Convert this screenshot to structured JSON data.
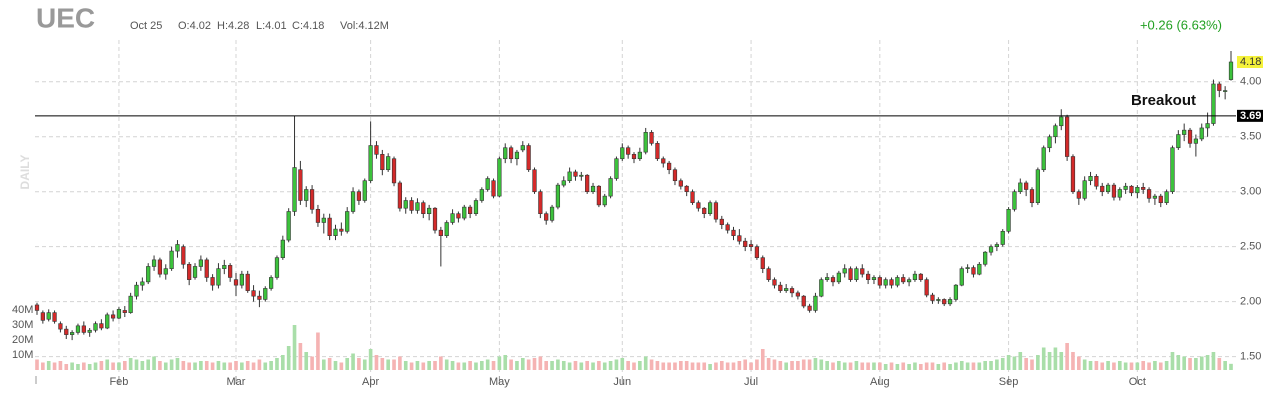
{
  "chart_data": {
    "type": "candlestick",
    "title": "UEC",
    "quote": {
      "date": "Oct 25",
      "open": "O:4.02",
      "high": "H:4.28",
      "low": "L:4.01",
      "close": "C:4.18",
      "volume": "Vol:4.12M",
      "change": "+0.26 (6.63%)"
    },
    "watermark": "DAILY",
    "ylim": [
      1.36,
      4.38
    ],
    "yticks": [
      {
        "value": 1.5,
        "label": "1.50"
      },
      {
        "value": 2,
        "label": "2.00"
      },
      {
        "value": 2.5,
        "label": "2.50"
      },
      {
        "value": 3,
        "label": "3.00"
      },
      {
        "value": 3.5,
        "label": "3.50"
      },
      {
        "value": 4,
        "label": "4.00"
      }
    ],
    "xlim": [
      0,
      204
    ],
    "xticks": [
      {
        "value": 14,
        "label": "Feb"
      },
      {
        "value": 34,
        "label": "Mar"
      },
      {
        "value": 57,
        "label": "Apr"
      },
      {
        "value": 79,
        "label": "May"
      },
      {
        "value": 100,
        "label": "Jun"
      },
      {
        "value": 122,
        "label": "Jul"
      },
      {
        "value": 144,
        "label": "Aug"
      },
      {
        "value": 166,
        "label": "Sep"
      },
      {
        "value": 188,
        "label": "Oct"
      }
    ],
    "grid": true,
    "up_color": "#3cc23c",
    "down_color": "#d42a2a",
    "up_volume_color": "#a9dea9",
    "down_volume_color": "#f5b3b3",
    "vlim": [
      0,
      40
    ],
    "vticks": [
      {
        "value": 10,
        "label": "10M"
      },
      {
        "value": 20,
        "label": "20M"
      },
      {
        "value": 30,
        "label": "30M"
      },
      {
        "value": 40,
        "label": "40M"
      }
    ],
    "last_price": {
      "value": 4.18,
      "label": "4.18"
    },
    "breakout": {
      "value": 3.69,
      "label": "3.69",
      "text": "Breakout"
    },
    "ohlc": [
      [
        1.97,
        1.99,
        1.88,
        1.92
      ],
      [
        1.9,
        1.92,
        1.8,
        1.83
      ],
      [
        1.84,
        1.93,
        1.82,
        1.9
      ],
      [
        1.9,
        1.92,
        1.8,
        1.82
      ],
      [
        1.8,
        1.82,
        1.72,
        1.75
      ],
      [
        1.75,
        1.78,
        1.66,
        1.7
      ],
      [
        1.7,
        1.74,
        1.65,
        1.72
      ],
      [
        1.72,
        1.8,
        1.7,
        1.78
      ],
      [
        1.78,
        1.82,
        1.7,
        1.72
      ],
      [
        1.72,
        1.76,
        1.68,
        1.74
      ],
      [
        1.74,
        1.82,
        1.72,
        1.8
      ],
      [
        1.8,
        1.84,
        1.74,
        1.76
      ],
      [
        1.76,
        1.9,
        1.75,
        1.88
      ],
      [
        1.88,
        1.92,
        1.82,
        1.85
      ],
      [
        1.85,
        1.95,
        1.84,
        1.93
      ],
      [
        1.92,
        1.96,
        1.86,
        1.9
      ],
      [
        1.9,
        2.08,
        1.89,
        2.05
      ],
      [
        2.05,
        2.18,
        2.02,
        2.15
      ],
      [
        2.15,
        2.22,
        2.1,
        2.18
      ],
      [
        2.18,
        2.35,
        2.16,
        2.32
      ],
      [
        2.32,
        2.42,
        2.28,
        2.38
      ],
      [
        2.38,
        2.4,
        2.22,
        2.25
      ],
      [
        2.25,
        2.34,
        2.2,
        2.3
      ],
      [
        2.3,
        2.5,
        2.28,
        2.46
      ],
      [
        2.46,
        2.56,
        2.4,
        2.52
      ],
      [
        2.5,
        2.52,
        2.3,
        2.34
      ],
      [
        2.34,
        2.36,
        2.15,
        2.2
      ],
      [
        2.22,
        2.35,
        2.2,
        2.32
      ],
      [
        2.32,
        2.42,
        2.28,
        2.38
      ],
      [
        2.38,
        2.4,
        2.18,
        2.22
      ],
      [
        2.22,
        2.25,
        2.1,
        2.15
      ],
      [
        2.15,
        2.35,
        2.12,
        2.3
      ],
      [
        2.3,
        2.38,
        2.25,
        2.33
      ],
      [
        2.33,
        2.35,
        2.18,
        2.22
      ],
      [
        2.2,
        2.26,
        2.05,
        2.15
      ],
      [
        2.15,
        2.28,
        2.12,
        2.25
      ],
      [
        2.25,
        2.28,
        2.08,
        2.1
      ],
      [
        2.1,
        2.15,
        2.0,
        2.05
      ],
      [
        2.05,
        2.1,
        1.95,
        2.02
      ],
      [
        2.02,
        2.14,
        2.0,
        2.12
      ],
      [
        2.12,
        2.24,
        2.1,
        2.22
      ],
      [
        2.22,
        2.42,
        2.2,
        2.4
      ],
      [
        2.4,
        2.6,
        2.38,
        2.56
      ],
      [
        2.56,
        2.85,
        2.54,
        2.82
      ],
      [
        2.82,
        3.69,
        2.78,
        3.22
      ],
      [
        3.2,
        3.28,
        2.88,
        2.92
      ],
      [
        2.92,
        3.05,
        2.86,
        3.02
      ],
      [
        3.02,
        3.06,
        2.8,
        2.84
      ],
      [
        2.84,
        2.88,
        2.68,
        2.72
      ],
      [
        2.72,
        2.8,
        2.62,
        2.76
      ],
      [
        2.76,
        2.8,
        2.56,
        2.6
      ],
      [
        2.6,
        2.7,
        2.56,
        2.66
      ],
      [
        2.66,
        2.72,
        2.6,
        2.64
      ],
      [
        2.64,
        2.86,
        2.62,
        2.82
      ],
      [
        2.82,
        3.04,
        2.8,
        3.0
      ],
      [
        3.0,
        3.02,
        2.88,
        2.92
      ],
      [
        2.92,
        3.12,
        2.9,
        3.1
      ],
      [
        3.1,
        3.64,
        3.08,
        3.42
      ],
      [
        3.42,
        3.46,
        3.3,
        3.34
      ],
      [
        3.34,
        3.38,
        3.15,
        3.2
      ],
      [
        3.2,
        3.35,
        3.18,
        3.32
      ],
      [
        3.3,
        3.32,
        3.05,
        3.08
      ],
      [
        3.08,
        3.1,
        2.82,
        2.85
      ],
      [
        2.85,
        2.95,
        2.8,
        2.92
      ],
      [
        2.92,
        2.95,
        2.8,
        2.83
      ],
      [
        2.83,
        2.94,
        2.8,
        2.9
      ],
      [
        2.9,
        2.92,
        2.76,
        2.8
      ],
      [
        2.8,
        2.88,
        2.74,
        2.85
      ],
      [
        2.85,
        2.86,
        2.62,
        2.65
      ],
      [
        2.65,
        2.68,
        2.32,
        2.6
      ],
      [
        2.6,
        2.74,
        2.58,
        2.72
      ],
      [
        2.72,
        2.84,
        2.7,
        2.8
      ],
      [
        2.8,
        2.82,
        2.72,
        2.76
      ],
      [
        2.76,
        2.88,
        2.74,
        2.86
      ],
      [
        2.86,
        2.88,
        2.76,
        2.8
      ],
      [
        2.8,
        2.94,
        2.78,
        2.92
      ],
      [
        2.92,
        3.04,
        2.9,
        3.02
      ],
      [
        3.02,
        3.14,
        3.0,
        3.12
      ],
      [
        3.1,
        3.12,
        2.94,
        2.96
      ],
      [
        2.96,
        3.32,
        2.95,
        3.3
      ],
      [
        3.3,
        3.44,
        3.26,
        3.4
      ],
      [
        3.4,
        3.42,
        3.26,
        3.3
      ],
      [
        3.3,
        3.38,
        3.24,
        3.36
      ],
      [
        3.38,
        3.46,
        3.36,
        3.42
      ],
      [
        3.42,
        3.44,
        3.18,
        3.2
      ],
      [
        3.2,
        3.22,
        2.98,
        3.0
      ],
      [
        3.0,
        3.02,
        2.76,
        2.8
      ],
      [
        2.8,
        2.82,
        2.7,
        2.74
      ],
      [
        2.74,
        2.88,
        2.72,
        2.86
      ],
      [
        2.86,
        3.08,
        2.84,
        3.06
      ],
      [
        3.06,
        3.14,
        3.04,
        3.1
      ],
      [
        3.1,
        3.22,
        3.08,
        3.18
      ],
      [
        3.18,
        3.2,
        3.1,
        3.14
      ],
      [
        3.14,
        3.18,
        3.1,
        3.15
      ],
      [
        3.15,
        3.16,
        2.98,
        3.0
      ],
      [
        3.0,
        3.08,
        2.98,
        3.05
      ],
      [
        3.05,
        3.06,
        2.86,
        2.88
      ],
      [
        2.88,
        2.98,
        2.86,
        2.96
      ],
      [
        2.96,
        3.14,
        2.94,
        3.12
      ],
      [
        3.12,
        3.32,
        3.1,
        3.3
      ],
      [
        3.3,
        3.44,
        3.28,
        3.4
      ],
      [
        3.4,
        3.42,
        3.3,
        3.34
      ],
      [
        3.34,
        3.36,
        3.26,
        3.3
      ],
      [
        3.3,
        3.4,
        3.28,
        3.36
      ],
      [
        3.36,
        3.58,
        3.34,
        3.54
      ],
      [
        3.54,
        3.56,
        3.42,
        3.44
      ],
      [
        3.44,
        3.46,
        3.28,
        3.3
      ],
      [
        3.3,
        3.32,
        3.22,
        3.26
      ],
      [
        3.26,
        3.28,
        3.16,
        3.2
      ],
      [
        3.2,
        3.22,
        3.06,
        3.1
      ],
      [
        3.1,
        3.12,
        3.02,
        3.05
      ],
      [
        3.05,
        3.06,
        2.96,
        3.0
      ],
      [
        3.0,
        3.02,
        2.88,
        2.9
      ],
      [
        2.9,
        2.92,
        2.82,
        2.85
      ],
      [
        2.85,
        2.86,
        2.76,
        2.8
      ],
      [
        2.8,
        2.92,
        2.78,
        2.9
      ],
      [
        2.9,
        2.92,
        2.72,
        2.75
      ],
      [
        2.75,
        2.78,
        2.66,
        2.7
      ],
      [
        2.7,
        2.72,
        2.62,
        2.65
      ],
      [
        2.65,
        2.68,
        2.56,
        2.6
      ],
      [
        2.6,
        2.66,
        2.52,
        2.55
      ],
      [
        2.55,
        2.58,
        2.46,
        2.5
      ],
      [
        2.52,
        2.56,
        2.46,
        2.5
      ],
      [
        2.5,
        2.52,
        2.38,
        2.4
      ],
      [
        2.4,
        2.42,
        2.26,
        2.3
      ],
      [
        2.3,
        2.32,
        2.18,
        2.2
      ],
      [
        2.2,
        2.22,
        2.12,
        2.15
      ],
      [
        2.15,
        2.18,
        2.08,
        2.1
      ],
      [
        2.1,
        2.16,
        2.08,
        2.12
      ],
      [
        2.12,
        2.14,
        2.04,
        2.08
      ],
      [
        2.08,
        2.1,
        2.02,
        2.05
      ],
      [
        2.05,
        2.06,
        1.94,
        1.96
      ],
      [
        1.96,
        1.98,
        1.9,
        1.92
      ],
      [
        1.92,
        2.08,
        1.9,
        2.05
      ],
      [
        2.05,
        2.22,
        2.04,
        2.2
      ],
      [
        2.2,
        2.26,
        2.18,
        2.22
      ],
      [
        2.22,
        2.24,
        2.14,
        2.18
      ],
      [
        2.18,
        2.28,
        2.16,
        2.26
      ],
      [
        2.26,
        2.34,
        2.22,
        2.3
      ],
      [
        2.3,
        2.32,
        2.18,
        2.2
      ],
      [
        2.2,
        2.32,
        2.18,
        2.3
      ],
      [
        2.3,
        2.34,
        2.22,
        2.25
      ],
      [
        2.25,
        2.28,
        2.16,
        2.2
      ],
      [
        2.2,
        2.24,
        2.16,
        2.22
      ],
      [
        2.22,
        2.24,
        2.12,
        2.15
      ],
      [
        2.15,
        2.22,
        2.12,
        2.2
      ],
      [
        2.2,
        2.22,
        2.12,
        2.15
      ],
      [
        2.15,
        2.24,
        2.13,
        2.22
      ],
      [
        2.22,
        2.25,
        2.16,
        2.18
      ],
      [
        2.18,
        2.22,
        2.14,
        2.2
      ],
      [
        2.2,
        2.28,
        2.18,
        2.25
      ],
      [
        2.25,
        2.26,
        2.18,
        2.2
      ],
      [
        2.2,
        2.22,
        2.04,
        2.06
      ],
      [
        2.06,
        2.08,
        1.98,
        2.01
      ],
      [
        2.01,
        2.04,
        1.98,
        2.02
      ],
      [
        2.02,
        2.03,
        1.96,
        1.98
      ],
      [
        1.98,
        2.04,
        1.96,
        2.02
      ],
      [
        2.02,
        2.16,
        2.0,
        2.15
      ],
      [
        2.15,
        2.32,
        2.14,
        2.3
      ],
      [
        2.3,
        2.34,
        2.26,
        2.31
      ],
      [
        2.31,
        2.33,
        2.22,
        2.25
      ],
      [
        2.25,
        2.36,
        2.24,
        2.34
      ],
      [
        2.34,
        2.46,
        2.32,
        2.45
      ],
      [
        2.45,
        2.52,
        2.42,
        2.5
      ],
      [
        2.5,
        2.54,
        2.46,
        2.52
      ],
      [
        2.52,
        2.66,
        2.5,
        2.64
      ],
      [
        2.64,
        2.86,
        2.62,
        2.84
      ],
      [
        2.84,
        3.02,
        2.82,
        3.0
      ],
      [
        3.0,
        3.12,
        2.98,
        3.08
      ],
      [
        3.08,
        3.1,
        2.96,
        3.02
      ],
      [
        3.02,
        3.04,
        2.86,
        2.9
      ],
      [
        2.9,
        3.22,
        2.88,
        3.2
      ],
      [
        3.2,
        3.42,
        3.18,
        3.4
      ],
      [
        3.4,
        3.52,
        3.36,
        3.5
      ],
      [
        3.5,
        3.62,
        3.44,
        3.6
      ],
      [
        3.6,
        3.75,
        3.56,
        3.68
      ],
      [
        3.68,
        3.7,
        3.28,
        3.32
      ],
      [
        3.32,
        3.34,
        2.98,
        3.0
      ],
      [
        3.0,
        3.02,
        2.88,
        2.94
      ],
      [
        2.94,
        3.14,
        2.92,
        3.1
      ],
      [
        3.1,
        3.18,
        3.06,
        3.14
      ],
      [
        3.14,
        3.16,
        3.02,
        3.05
      ],
      [
        3.05,
        3.08,
        2.96,
        3.0
      ],
      [
        3.0,
        3.08,
        2.98,
        3.06
      ],
      [
        3.06,
        3.08,
        2.92,
        2.95
      ],
      [
        2.95,
        3.04,
        2.92,
        3.02
      ],
      [
        3.02,
        3.08,
        2.98,
        3.05
      ],
      [
        3.05,
        3.06,
        2.96,
        2.99
      ],
      [
        2.99,
        3.06,
        2.94,
        3.04
      ],
      [
        3.04,
        3.08,
        2.98,
        3.02
      ],
      [
        3.02,
        3.04,
        2.9,
        2.94
      ],
      [
        2.94,
        2.98,
        2.88,
        2.96
      ],
      [
        2.96,
        2.98,
        2.86,
        2.9
      ],
      [
        2.9,
        3.02,
        2.88,
        3.0
      ],
      [
        3.0,
        3.42,
        2.98,
        3.4
      ],
      [
        3.4,
        3.56,
        3.38,
        3.52
      ],
      [
        3.52,
        3.62,
        3.46,
        3.56
      ],
      [
        3.56,
        3.58,
        3.4,
        3.44
      ],
      [
        3.44,
        3.52,
        3.32,
        3.48
      ],
      [
        3.48,
        3.62,
        3.46,
        3.58
      ],
      [
        3.58,
        3.72,
        3.5,
        3.62
      ],
      [
        3.62,
        4.02,
        3.6,
        3.98
      ],
      [
        3.98,
        4.0,
        3.86,
        3.92
      ],
      [
        3.92,
        3.96,
        3.84,
        3.92
      ],
      [
        4.02,
        4.28,
        4.01,
        4.18
      ]
    ],
    "volume": [
      7,
      5,
      6,
      5,
      6,
      4,
      5,
      4,
      5,
      4,
      5,
      6,
      7,
      5,
      5,
      6,
      8,
      7,
      6,
      7,
      9,
      6,
      5,
      7,
      8,
      6,
      5,
      5,
      6,
      6,
      5,
      6,
      5,
      5,
      6,
      5,
      6,
      5,
      7,
      5,
      6,
      8,
      10,
      16,
      30,
      18,
      12,
      9,
      25,
      7,
      8,
      6,
      5,
      8,
      11,
      8,
      7,
      14,
      10,
      8,
      7,
      7,
      9,
      6,
      5,
      6,
      5,
      6,
      6,
      9,
      7,
      6,
      5,
      5,
      6,
      5,
      6,
      7,
      6,
      9,
      10,
      7,
      6,
      8,
      7,
      8,
      9,
      6,
      6,
      7,
      6,
      5,
      6,
      5,
      6,
      5,
      6,
      5,
      6,
      7,
      8,
      6,
      5,
      6,
      9,
      7,
      6,
      5,
      5,
      5,
      6,
      6,
      5,
      5,
      5,
      4,
      5,
      6,
      5,
      5,
      6,
      7,
      5,
      7,
      14,
      8,
      7,
      6,
      5,
      6,
      6,
      7,
      7,
      8,
      7,
      6,
      5,
      6,
      5,
      5,
      6,
      5,
      5,
      5,
      5,
      4,
      5,
      4,
      5,
      4,
      5,
      4,
      5,
      5,
      4,
      5,
      4,
      5,
      6,
      5,
      5,
      5,
      6,
      6,
      7,
      8,
      10,
      9,
      12,
      8,
      7,
      10,
      15,
      12,
      15,
      12,
      18,
      12,
      9,
      7,
      6,
      6,
      5,
      6,
      5,
      6,
      5,
      5,
      5,
      6,
      5,
      6,
      5,
      6,
      12,
      10,
      9,
      8,
      8,
      9,
      10,
      12,
      8,
      6,
      4.12
    ]
  }
}
